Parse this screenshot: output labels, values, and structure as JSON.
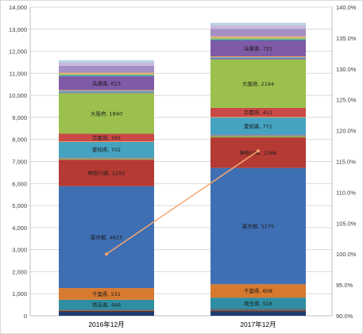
{
  "chart_data": {
    "type": "bar",
    "stacked": true,
    "categories": [
      "2016年12月",
      "2017年12月"
    ],
    "series": [
      {
        "label": "",
        "color": "#1f3a6e",
        "values": [
          180,
          200
        ]
      },
      {
        "label": "",
        "color": "#7a2a27",
        "values": [
          40,
          45
        ]
      },
      {
        "label": "",
        "color": "#4d7a2f",
        "values": [
          30,
          30
        ]
      },
      {
        "label": "",
        "color": "#5a4a8a",
        "values": [
          30,
          30
        ]
      },
      {
        "label": "埼玉県",
        "color": "#2f8ea1",
        "values": [
          446,
          518
        ]
      },
      {
        "label": "千葉県",
        "color": "#d7792f",
        "values": [
          531,
          608
        ]
      },
      {
        "label": "東京都",
        "color": "#3f6fb3",
        "values": [
          4623,
          5275
        ]
      },
      {
        "label": "神奈川県",
        "color": "#b53a34",
        "values": [
          1202,
          1386
        ]
      },
      {
        "label": "",
        "color": "#8faa5a",
        "values": [
          60,
          80
        ]
      },
      {
        "label": "",
        "color": "#8a7db0",
        "values": [
          40,
          50
        ]
      },
      {
        "label": "愛知県",
        "color": "#45a3c0",
        "values": [
          702,
          771
        ]
      },
      {
        "label": "",
        "color": "#e8924a",
        "values": [
          30,
          30
        ]
      },
      {
        "label": "京都府",
        "color": "#c94a46",
        "values": [
          345,
          411
        ]
      },
      {
        "label": "大阪府",
        "color": "#9bc04e",
        "values": [
          1840,
          2194
        ]
      },
      {
        "label": "",
        "color": "#7f67a8",
        "values": [
          40,
          50
        ]
      },
      {
        "label": "",
        "color": "#4fa7c5",
        "values": [
          60,
          50
        ]
      },
      {
        "label": "",
        "color": "#f0a060",
        "values": [
          40,
          40
        ]
      },
      {
        "label": "兵庫県",
        "color": "#7f5aa6",
        "values": [
          623,
          721
        ]
      },
      {
        "label": "",
        "color": "#3a8fb0",
        "values": [
          50,
          50
        ]
      },
      {
        "label": "",
        "color": "#a0c060",
        "values": [
          60,
          70
        ]
      },
      {
        "label": "",
        "color": "#e6a878",
        "values": [
          60,
          70
        ]
      },
      {
        "label": "",
        "color": "#a38ec4",
        "values": [
          310,
          330
        ]
      },
      {
        "label": "",
        "color": "#c9b8dc",
        "values": [
          140,
          160
        ]
      },
      {
        "label": "",
        "color": "#b8d4e4",
        "values": [
          110,
          120
        ]
      }
    ],
    "segment_value_labels": [
      [
        "",
        "",
        "",
        "",
        "埼玉県, 446",
        "千葉県, 531",
        "東京都, 4623",
        "神奈川県, 1202",
        "",
        "",
        "愛知県, 702",
        "",
        "京都府, 345",
        "大阪府, 1840",
        "",
        "",
        "",
        "兵庫県, 623",
        "",
        "",
        "",
        "",
        "",
        ""
      ],
      [
        "",
        "",
        "",
        "",
        "埼玉県, 518",
        "千葉県, 608",
        "東京都, 5275",
        "神奈川県, 1386",
        "",
        "",
        "愛知県, 771",
        "",
        "京都府, 411",
        "大阪府, 2194",
        "",
        "",
        "",
        "兵庫県, 721",
        "",
        "",
        "",
        "",
        "",
        ""
      ]
    ],
    "line_series": {
      "axis": "secondary",
      "color": "#f4a771",
      "values": [
        100.0,
        116.7
      ]
    },
    "ylim": [
      0,
      14000
    ],
    "yticks": [
      "0",
      "1,000",
      "2,000",
      "3,000",
      "4,000",
      "5,000",
      "6,000",
      "7,000",
      "8,000",
      "9,000",
      "10,000",
      "11,000",
      "12,000",
      "13,000",
      "14,000"
    ],
    "y2lim": [
      90.0,
      140.0
    ],
    "y2ticks": [
      "90.0%",
      "95.0%",
      "100.0%",
      "105.0%",
      "110.0%",
      "115.0%",
      "120.0%",
      "125.0%",
      "130.0%",
      "135.0%",
      "140.0%"
    ],
    "grid": true,
    "legend": "none",
    "title": "",
    "xlabel": "",
    "ylabel": ""
  }
}
